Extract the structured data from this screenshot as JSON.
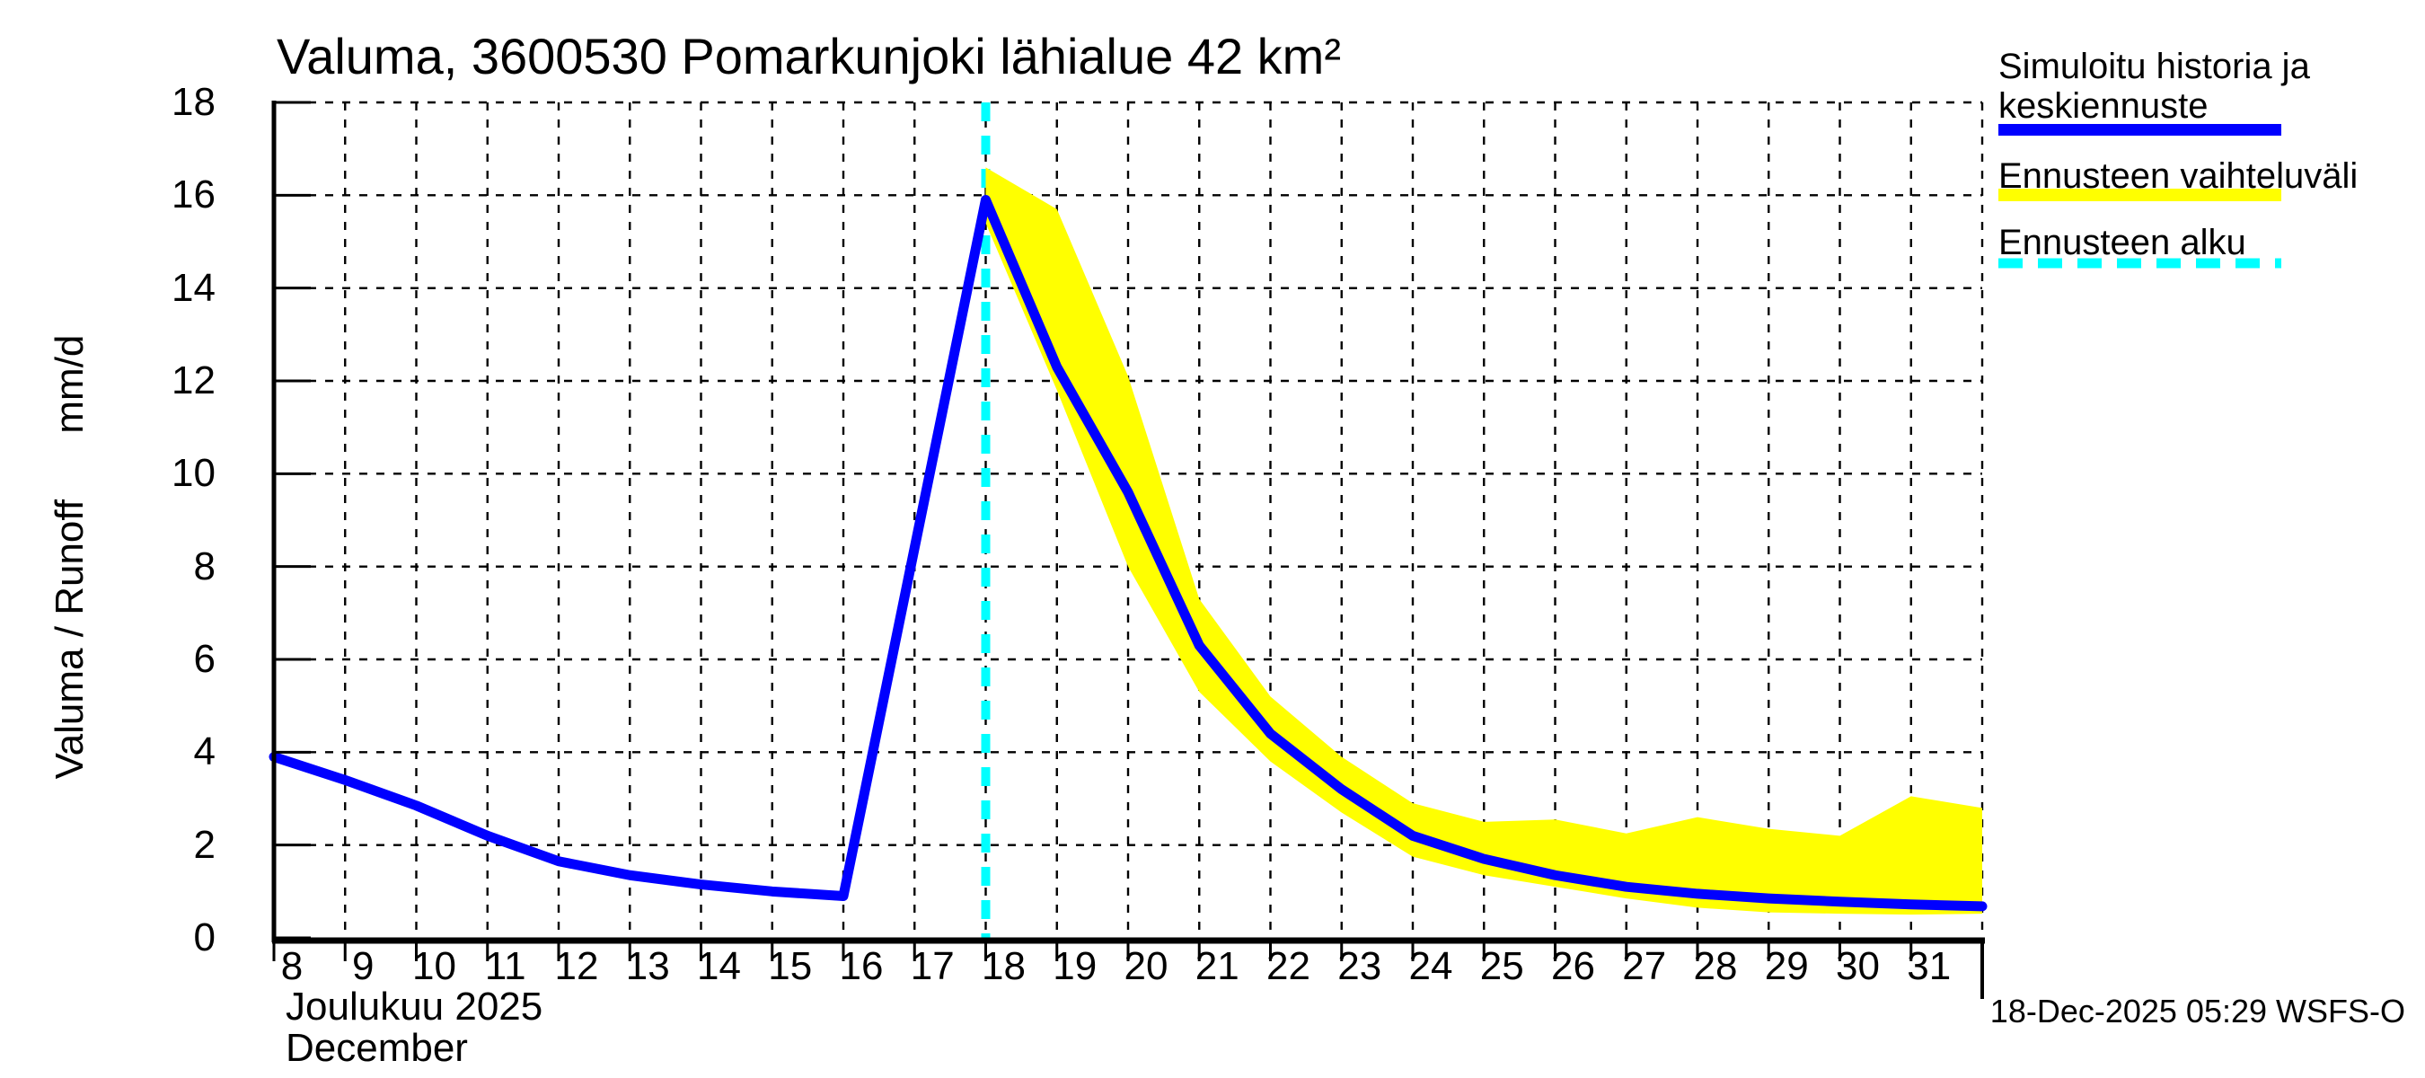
{
  "title": "Valuma, 3600530 Pomarkunjoki lähialue 42 km²",
  "y_axis": {
    "label": "Valuma / Runoff      mm/d",
    "tick_labels": [
      "0",
      "2",
      "4",
      "6",
      "8",
      "10",
      "12",
      "14",
      "16",
      "18"
    ],
    "min": 0,
    "max": 18
  },
  "x_axis": {
    "tick_labels": [
      "8",
      "9",
      "10",
      "11",
      "12",
      "13",
      "14",
      "15",
      "16",
      "17",
      "18",
      "19",
      "20",
      "21",
      "22",
      "23",
      "24",
      "25",
      "26",
      "27",
      "28",
      "29",
      "30",
      "31"
    ],
    "label_fi": "Joulukuu 2025",
    "label_en": "December",
    "min_day": 8,
    "max_day": 32
  },
  "legend": {
    "items": [
      {
        "lines": [
          "Simuloitu historia ja",
          "keskiennuste"
        ],
        "color": "#0000ff",
        "style": "solid"
      },
      {
        "lines": [
          "Ennusteen vaihteluväli"
        ],
        "color": "#ffff00",
        "style": "solid"
      },
      {
        "lines": [
          "Ennusteen alku"
        ],
        "color": "#00ffff",
        "style": "dashed"
      }
    ]
  },
  "footer": {
    "timestamp": "18-Dec-2025 05:29 WSFS-O"
  },
  "colors": {
    "median_line": "#0000ff",
    "forecast_band": "#ffff00",
    "forecast_start": "#00ffff",
    "grid": "#000000",
    "background": "#ffffff"
  },
  "chart_data": {
    "type": "line",
    "title": "Valuma, 3600530 Pomarkunjoki lähialue 42 km²",
    "xlabel": "Joulukuu 2025 / December",
    "ylabel": "Valuma / Runoff mm/d",
    "xlim": [
      8,
      32
    ],
    "ylim": [
      0,
      18
    ],
    "grid": true,
    "legend_position": "top-right",
    "forecast_start_day": 18,
    "series": [
      {
        "name": "Simuloitu historia ja keskiennuste",
        "type": "line",
        "color": "#0000ff",
        "x": [
          8,
          9,
          10,
          11,
          12,
          13,
          14,
          15,
          16,
          17,
          18,
          19,
          20,
          21,
          22,
          23,
          24,
          25,
          26,
          27,
          28,
          29,
          30,
          31,
          32
        ],
        "y": [
          3.9,
          3.4,
          2.85,
          2.2,
          1.65,
          1.35,
          1.15,
          1.0,
          0.9,
          8.4,
          15.9,
          12.3,
          9.6,
          6.3,
          4.4,
          3.2,
          2.2,
          1.7,
          1.35,
          1.1,
          0.95,
          0.85,
          0.78,
          0.72,
          0.68
        ]
      },
      {
        "name": "Ennusteen vaihteluväli (yläraja)",
        "type": "band-upper",
        "color": "#ffff00",
        "x": [
          18,
          19,
          20,
          21,
          22,
          23,
          24,
          25,
          26,
          27,
          28,
          29,
          30,
          31,
          32
        ],
        "y": [
          16.6,
          15.7,
          12.1,
          7.3,
          5.2,
          3.9,
          2.9,
          2.5,
          2.55,
          2.25,
          2.6,
          2.35,
          2.2,
          3.05,
          2.8
        ]
      },
      {
        "name": "Ennusteen vaihteluväli (alaraja)",
        "type": "band-lower",
        "color": "#ffff00",
        "x": [
          18,
          19,
          20,
          21,
          22,
          23,
          24,
          25,
          26,
          27,
          28,
          29,
          30,
          31,
          32
        ],
        "y": [
          15.4,
          11.8,
          8.0,
          5.3,
          3.8,
          2.7,
          1.75,
          1.35,
          1.1,
          0.85,
          0.65,
          0.55,
          0.52,
          0.5,
          0.52
        ]
      }
    ]
  }
}
